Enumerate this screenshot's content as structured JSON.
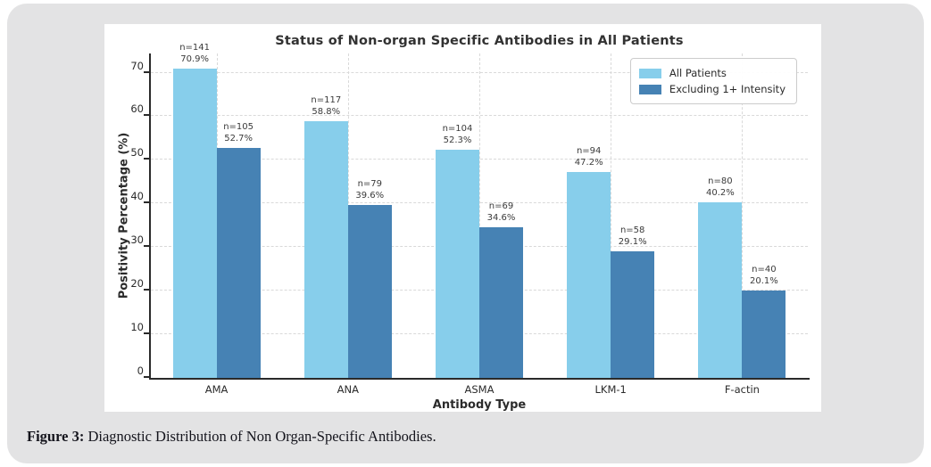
{
  "caption": {
    "prefix": "Figure 3:",
    "text": " Diagnostic Distribution of Non Organ-Specific Antibodies."
  },
  "colors": {
    "page_background": "#e3e3e4",
    "panel_background": "#ffffff",
    "series_all_patients": "#87CEEB",
    "series_excluding": "#4682B4",
    "grid": "#d9d9d9",
    "spine": "#2a2a2a",
    "text": "#2b2b2b"
  },
  "chart_data": {
    "type": "bar",
    "title": "Status of Non-organ Specific Antibodies in All Patients",
    "xlabel": "Antibody Type",
    "ylabel": "Positivity Percentage (%)",
    "categories": [
      "AMA",
      "ANA",
      "ASMA",
      "LKM-1",
      "F-actin"
    ],
    "series": [
      {
        "name": "All Patients",
        "color": "#87CEEB",
        "values": [
          70.9,
          58.8,
          52.3,
          47.2,
          40.2
        ],
        "counts": [
          141,
          117,
          104,
          94,
          80
        ],
        "bar_labels": [
          [
            "n=141",
            "70.9%"
          ],
          [
            "n=117",
            "58.8%"
          ],
          [
            "n=104",
            "52.3%"
          ],
          [
            "n=94",
            "47.2%"
          ],
          [
            "n=80",
            "40.2%"
          ]
        ]
      },
      {
        "name": "Excluding 1+ Intensity",
        "color": "#4682B4",
        "values": [
          52.7,
          39.6,
          34.6,
          29.1,
          20.1
        ],
        "counts": [
          105,
          79,
          69,
          58,
          40
        ],
        "bar_labels": [
          [
            "n=105",
            "52.7%"
          ],
          [
            "n=79",
            "39.6%"
          ],
          [
            "n=69",
            "34.6%"
          ],
          [
            "n=58",
            "29.1%"
          ],
          [
            "n=40",
            "20.1%"
          ]
        ]
      }
    ],
    "yticks": [
      0,
      10,
      20,
      30,
      40,
      50,
      60,
      70
    ],
    "ylim": [
      0,
      74.4
    ],
    "grid": "dashed-both-axes",
    "legend_position": "upper right"
  }
}
